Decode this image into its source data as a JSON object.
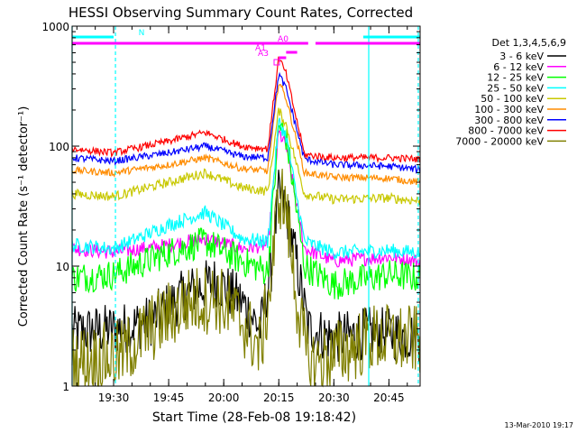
{
  "chart_data": {
    "type": "line",
    "title": "HESSI Observing Summary Count Rates, Corrected",
    "xlabel": "Start Time (28-Feb-08 19:18:42)",
    "ylabel": "Corrected Count Rate (s⁻¹ detector⁻¹)",
    "footer": "13-Mar-2010 19:17",
    "y_scale": "log",
    "ylim": [
      1,
      1000
    ],
    "y_ticks": [
      {
        "v": 1,
        "label": "1"
      },
      {
        "v": 10,
        "label": "10"
      },
      {
        "v": 100,
        "label": "100"
      },
      {
        "v": 1000,
        "label": "1000"
      }
    ],
    "xlim": [
      "19:18:42",
      "20:53:30"
    ],
    "x_ticks": [
      {
        "t": "19:30",
        "label": "19:30"
      },
      {
        "t": "19:45",
        "label": "19:45"
      },
      {
        "t": "20:00",
        "label": "20:00"
      },
      {
        "t": "20:15",
        "label": "20:15"
      },
      {
        "t": "20:30",
        "label": "20:30"
      },
      {
        "t": "20:45",
        "label": "20:45"
      }
    ],
    "legend": {
      "header": "Det 1,3,4,5,6,9",
      "placement": "right",
      "entries": [
        {
          "label": "3 - 6 keV",
          "color": "#000000"
        },
        {
          "label": "6 - 12 keV",
          "color": "#ff00ff"
        },
        {
          "label": "12 - 25 keV",
          "color": "#00ff00"
        },
        {
          "label": "25 - 50 keV",
          "color": "#00ffff"
        },
        {
          "label": "50 - 100 keV",
          "color": "#c8c800"
        },
        {
          "label": "100 - 300 keV",
          "color": "#ff8c00"
        },
        {
          "label": "300 - 800 keV",
          "color": "#0000ff"
        },
        {
          "label": "800 - 7000 keV",
          "color": "#ff0000"
        },
        {
          "label": "7000 - 20000 keV",
          "color": "#808000"
        }
      ]
    },
    "series": [
      {
        "name": "3 - 6 keV",
        "color": "#000000",
        "noise": 0.22,
        "x": [
          "19:18:42",
          "19:32",
          "19:40",
          "19:50",
          "19:58",
          "20:05",
          "20:10",
          "20:13",
          "20:15",
          "20:17",
          "20:20",
          "20:23",
          "20:30",
          "20:40",
          "20:53"
        ],
        "y": [
          2.8,
          3.0,
          3.5,
          6.0,
          7.5,
          5.0,
          3.0,
          10,
          40,
          30,
          10,
          3.0,
          2.5,
          2.8,
          2.6
        ]
      },
      {
        "name": "6 - 12 keV",
        "color": "#ff00ff",
        "noise": 0.06,
        "x": [
          "19:18:42",
          "19:30",
          "19:45",
          "19:55",
          "20:05",
          "20:12",
          "20:15",
          "20:17",
          "20:22",
          "20:30",
          "20:45",
          "20:53"
        ],
        "y": [
          14,
          13,
          15,
          17,
          14,
          15,
          130,
          100,
          14,
          11,
          12,
          11
        ]
      },
      {
        "name": "12 - 25 keV",
        "color": "#00ff00",
        "noise": 0.13,
        "x": [
          "19:18:42",
          "19:30",
          "19:45",
          "19:55",
          "20:05",
          "20:12",
          "20:15",
          "20:17",
          "20:22",
          "20:30",
          "20:45",
          "20:53"
        ],
        "y": [
          8,
          8.5,
          13,
          16,
          11,
          9,
          150,
          120,
          10,
          7,
          8.5,
          8
        ]
      },
      {
        "name": "25 - 50 keV",
        "color": "#00ffff",
        "noise": 0.06,
        "x": [
          "19:18:42",
          "19:30",
          "19:45",
          "19:55",
          "20:05",
          "20:12",
          "20:15",
          "20:17",
          "20:22",
          "20:30",
          "20:45",
          "20:53"
        ],
        "y": [
          15,
          14,
          22,
          28,
          17,
          16,
          160,
          120,
          16,
          13,
          13.5,
          13
        ]
      },
      {
        "name": "50 - 100 keV",
        "color": "#c8c800",
        "noise": 0.04,
        "x": [
          "19:18:42",
          "19:30",
          "19:45",
          "19:55",
          "20:05",
          "20:12",
          "20:15",
          "20:17",
          "20:22",
          "20:30",
          "20:45",
          "20:53"
        ],
        "y": [
          40,
          38,
          50,
          60,
          45,
          42,
          200,
          150,
          40,
          36,
          37,
          35
        ]
      },
      {
        "name": "100 - 300 keV",
        "color": "#ff8c00",
        "noise": 0.03,
        "x": [
          "19:18:42",
          "19:30",
          "19:45",
          "19:55",
          "20:05",
          "20:12",
          "20:15",
          "20:17",
          "20:22",
          "20:30",
          "20:45",
          "20:53"
        ],
        "y": [
          63,
          60,
          70,
          80,
          65,
          62,
          350,
          250,
          60,
          55,
          54,
          50
        ]
      },
      {
        "name": "300 - 800 keV",
        "color": "#0000ff",
        "noise": 0.03,
        "x": [
          "19:18:42",
          "19:30",
          "19:45",
          "19:55",
          "20:05",
          "20:12",
          "20:15",
          "20:17",
          "20:22",
          "20:30",
          "20:45",
          "20:53"
        ],
        "y": [
          80,
          75,
          88,
          100,
          82,
          80,
          400,
          300,
          78,
          70,
          68,
          64
        ]
      },
      {
        "name": "800 - 7000 keV",
        "color": "#ff0000",
        "noise": 0.03,
        "x": [
          "19:18:42",
          "19:30",
          "19:45",
          "19:55",
          "20:05",
          "20:12",
          "20:15",
          "20:17",
          "20:22",
          "20:30",
          "20:45",
          "20:53"
        ],
        "y": [
          95,
          88,
          110,
          130,
          100,
          95,
          550,
          400,
          85,
          80,
          80,
          78
        ]
      },
      {
        "name": "7000 - 20000 keV",
        "color": "#808000",
        "noise": 0.3,
        "x": [
          "19:18:42",
          "19:32",
          "19:40",
          "19:50",
          "19:58",
          "20:05",
          "20:10",
          "20:13",
          "20:15",
          "20:17",
          "20:20",
          "20:23",
          "20:30",
          "20:40",
          "20:53"
        ],
        "y": [
          1.6,
          1.8,
          3.0,
          5.0,
          5.5,
          3.5,
          2.0,
          8,
          42,
          30,
          5,
          1.5,
          1.8,
          2.5,
          2.4
        ]
      }
    ],
    "attenuator_bars": [
      {
        "label": "N",
        "color": "#00ffff",
        "segments": [
          [
            "19:18:42",
            "19:30"
          ],
          [
            "20:38",
            "20:53:30"
          ]
        ]
      },
      {
        "label": "A0",
        "color": "#ff00ff",
        "segments": [
          [
            "19:18:42",
            "20:23"
          ],
          [
            "20:25",
            "20:53:30"
          ]
        ]
      },
      {
        "label": "A1",
        "color": "#ff00ff",
        "segments": [
          [
            "20:17",
            "20:20"
          ]
        ]
      },
      {
        "label": "A3",
        "color": "#ff00ff",
        "segments": [
          [
            "20:15",
            "20:17"
          ]
        ]
      }
    ],
    "vertical_lines": [
      {
        "t": "19:18:42",
        "color": "#00ffff",
        "style": "solid"
      },
      {
        "t": "19:30:30",
        "color": "#00ffff",
        "style": "dashed"
      },
      {
        "t": "20:39:30",
        "color": "#00ffff",
        "style": "solid"
      },
      {
        "t": "20:53:00",
        "color": "#00ffff",
        "style": "dashed"
      }
    ]
  }
}
